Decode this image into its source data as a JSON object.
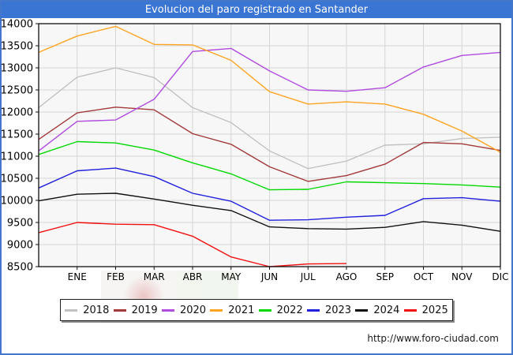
{
  "title": "Evolucion del paro registrado en Santander",
  "footer_url": "http://www.foro-ciudad.com",
  "colors": {
    "titlebar": "#3b75d3",
    "page_border": "#4377cc",
    "plot_bg": "#f7f7f7",
    "grid": "#d6d6d6",
    "axis": "#111111",
    "tick_text": "#000000"
  },
  "chart_data": {
    "type": "line",
    "title": "Evolucion del paro registrado en Santander",
    "xlabel": "",
    "ylabel": "",
    "ylim": [
      8500,
      14000
    ],
    "ytick_step": 500,
    "grid": true,
    "legend_position": "bottom",
    "x_tick_labels": [
      "ENE",
      "FEB",
      "MAR",
      "ABR",
      "MAY",
      "JUN",
      "JUL",
      "AGO",
      "SEP",
      "OCT",
      "NOV",
      "DIC"
    ],
    "note": "Each series starts at the left axis with the previous December value, then one point per month at each gridline. 2025 data ends in August.",
    "series": [
      {
        "name": "2018",
        "color": "#c2c2c2",
        "values": [
          12100,
          12790,
          13000,
          12780,
          12100,
          11760,
          11120,
          10720,
          10890,
          11250,
          11280,
          11400,
          11430
        ]
      },
      {
        "name": "2019",
        "color": "#a33a3a",
        "values": [
          11380,
          11980,
          12110,
          12050,
          11510,
          11270,
          10760,
          10430,
          10560,
          10820,
          11310,
          11280,
          11130
        ]
      },
      {
        "name": "2020",
        "color": "#b04ce0",
        "values": [
          11120,
          11790,
          11820,
          12290,
          13370,
          13440,
          12930,
          12500,
          12470,
          12550,
          13020,
          13280,
          13350
        ]
      },
      {
        "name": "2021",
        "color": "#ffa420",
        "values": [
          13350,
          13720,
          13940,
          13530,
          13520,
          13170,
          12460,
          12180,
          12230,
          12180,
          11950,
          11570,
          11090
        ]
      },
      {
        "name": "2022",
        "color": "#00d800",
        "values": [
          11040,
          11330,
          11300,
          11140,
          10850,
          10600,
          10240,
          10250,
          10420,
          10400,
          10380,
          10350,
          10300
        ]
      },
      {
        "name": "2023",
        "color": "#2020dd",
        "values": [
          10280,
          10670,
          10730,
          10540,
          10160,
          9980,
          9550,
          9560,
          9620,
          9660,
          10040,
          10060,
          9980
        ]
      },
      {
        "name": "2024",
        "color": "#111111",
        "values": [
          9990,
          10140,
          10160,
          10030,
          9890,
          9770,
          9400,
          9360,
          9350,
          9390,
          9520,
          9440,
          9300
        ]
      },
      {
        "name": "2025",
        "color": "#f01010",
        "values": [
          9270,
          9500,
          9460,
          9450,
          9190,
          8720,
          8500,
          8560,
          8570
        ]
      }
    ]
  }
}
